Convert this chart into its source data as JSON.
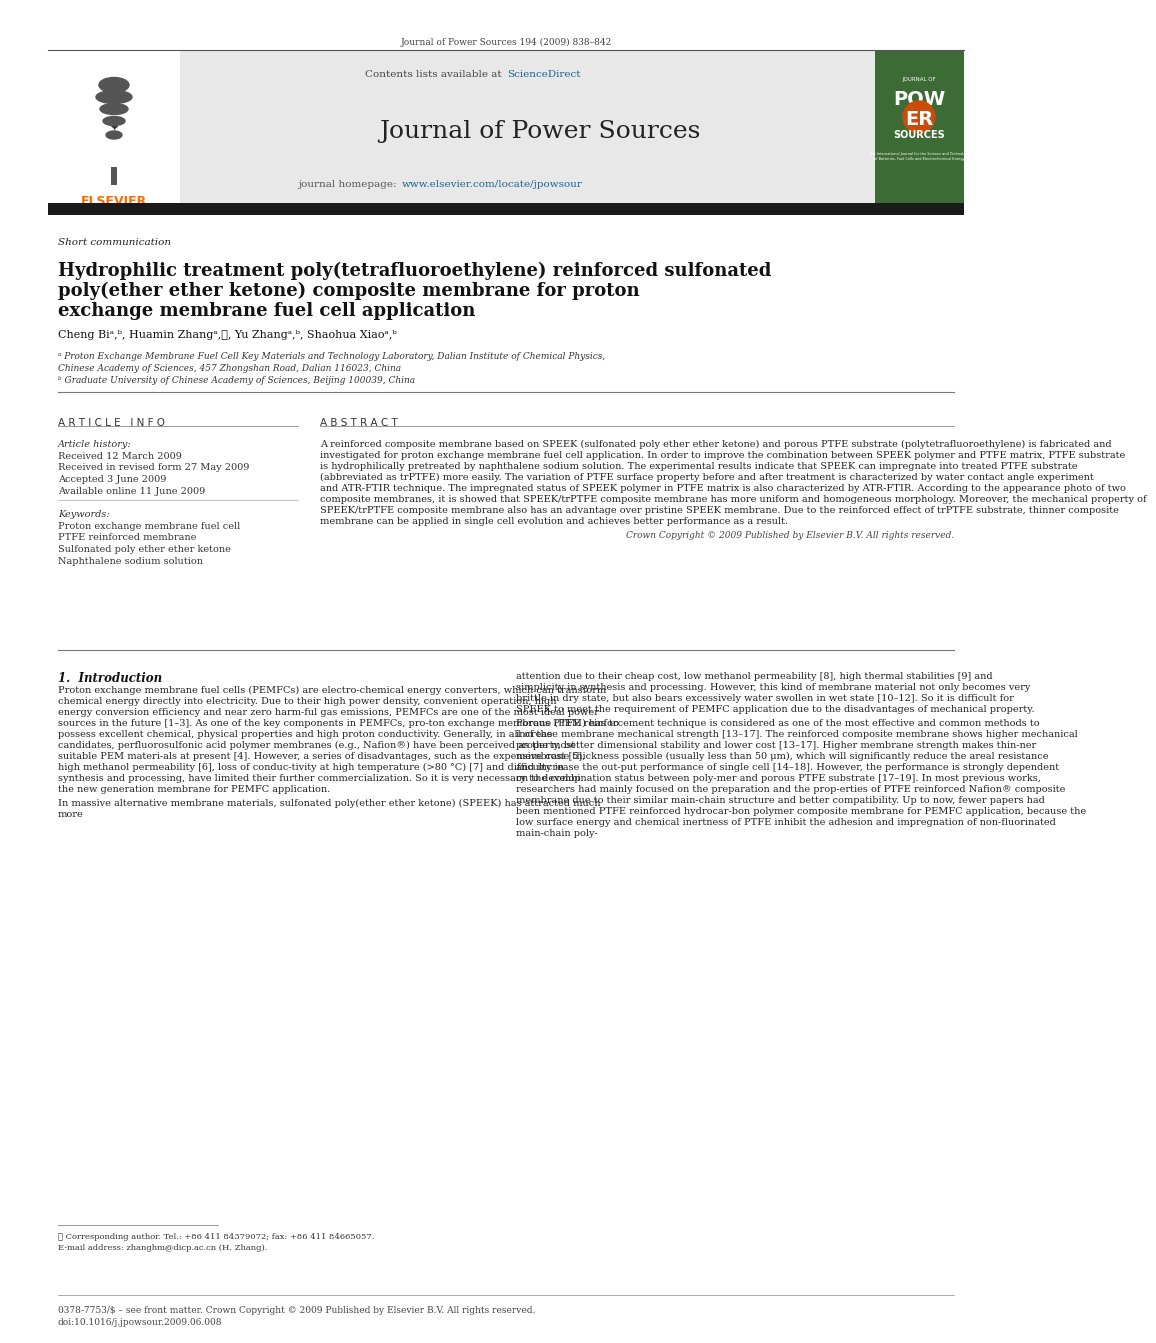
{
  "journal_ref": "Journal of Power Sources 194 (2009) 838–842",
  "contents_line1": "Contents lists available at ",
  "contents_scidir": "ScienceDirect",
  "journal_title": "Journal of Power Sources",
  "homepage_prefix": "journal homepage: ",
  "homepage_url": "www.elsevier.com/locate/jpowsour",
  "section_label": "Short communication",
  "paper_title_line1": "Hydrophilic treatment poly(tetrafluoroethylene) reinforced sulfonated",
  "paper_title_line2": "poly(ether ether ketone) composite membrane for proton",
  "paper_title_line3": "exchange membrane fuel cell application",
  "authors_full": "Cheng Biᵃ,ᵇ, Huamin Zhangᵃ,⋆, Yu Zhangᵃ,ᵇ, Shaohua Xiaoᵃ,ᵇ",
  "affil_a": "ᵃ Proton Exchange Membrane Fuel Cell Key Materials and Technology Laboratory, Dalian Institute of Chemical Physics,",
  "affil_a2": "Chinese Academy of Sciences, 457 Zhongshan Road, Dalian 116023, China",
  "affil_b": "ᵇ Graduate University of Chinese Academy of Sciences, Beijing 100039, China",
  "article_info_title": "A R T I C L E   I N F O",
  "abstract_title": "A B S T R A C T",
  "article_history_label": "Article history:",
  "received": "Received 12 March 2009",
  "received_revised": "Received in revised form 27 May 2009",
  "accepted": "Accepted 3 June 2009",
  "available": "Available online 11 June 2009",
  "keywords_label": "Keywords:",
  "kw1": "Proton exchange membrane fuel cell",
  "kw2": "PTFE reinforced membrane",
  "kw3": "Sulfonated poly ether ether ketone",
  "kw4": "Naphthalene sodium solution",
  "abstract_text": "A reinforced composite membrane based on SPEEK (sulfonated poly ether ether ketone) and porous PTFE substrate (polytetrafluoroethylene) is fabricated and investigated for proton exchange membrane fuel cell application. In order to improve the combination between SPEEK polymer and PTFE matrix, PTFE substrate is hydrophilically pretreated by naphthalene sodium solution. The experimental results indicate that SPEEK can impregnate into treated PTFE substrate (abbreviated as trPTFE) more easily. The variation of PTFE surface property before and after treatment is characterized by water contact angle experiment and ATR-FTIR technique. The impregnated status of SPEEK polymer in PTFE matrix is also characterized by ATR-FTIR. According to the appearance photo of two composite membranes, it is showed that SPEEK/trPTFE composite membrane has more uniform and homogeneous morphology. Moreover, the mechanical property of SPEEK/trPTFE composite membrane also has an advantage over pristine SPEEK membrane. Due to the reinforced effect of trPTFE substrate, thinner composite membrane can be applied in single cell evolution and achieves better performance as a result.",
  "copyright_line": "Crown Copyright © 2009 Published by Elsevier B.V. All rights reserved.",
  "intro_title": "1.  Introduction",
  "intro_indent": "    Proton exchange membrane fuel cells (PEMFCs) are electro-chemical energy converters, which can transform chemical energy directly into electricity. Due to their high power density, convenient operation, high energy conversion efficiency and near zero harm-ful gas emissions, PEMFCs are one of the most ideal power sources in the future [1–3]. As one of the key components in PEMFCs, pro-ton exchange membrane (PEM) has to possess excellent chemical, physical properties and high proton conductivity. Generally, in all of the candidates, perfluorosulfonic acid polymer membranes (e.g., Nafion®) have been perceived as the most suitable PEM materi-als at present [4]. However, a series of disadvantages, such as the expensive cost [5], high methanol permeability [6], loss of conduc-tivity at high temperature (>80 °C) [7] and difficulty in synthesis and processing, have limited their further commercialization. So it is very necessary to develop the new generation membrane for PEMFC application.",
  "intro_para2": "    In massive alternative membrane materials, sulfonated poly(ether ether ketone) (SPEEK) has attracted much more",
  "right_col_text1": "attention due to their cheap cost, low methanol permeability [8], high thermal stabilities [9] and simplicity in synthesis and processing. However, this kind of membrane material not only becomes very brittle in dry state, but also bears excessively water swollen in wet state [10–12]. So it is difficult for SPEEK to meet the requirement of PEMFC application due to the disadvantages of mechanical property.",
  "right_col_indent2": "    Porous PTFE reinforcement technique is considered as one of the most effective and common methods to increase membrane mechanical strength [13–17]. The reinforced composite membrane shows higher mechanical property, better dimensional stability and lower cost [13–17]. Higher membrane strength makes thin-ner membrane thickness possible (usually less than 50 μm), which will significantly reduce the areal resistance and increase the out-put performance of single cell [14–18]. However, the performance is strongly dependent on the combination status between poly-mer and porous PTFE substrate [17–19]. In most previous works, researchers had mainly focused on the preparation and the prop-erties of PTFE reinforced Nafion® composite membrane due to their similar main-chain structure and better compatibility. Up to now, fewer papers had been mentioned PTFE reinforced hydrocar-bon polymer composite membrane for PEMFC application, because the low surface energy and chemical inertness of PTFE inhibit the adhesion and impregnation of non-fluorinated main-chain poly-",
  "footnote_star": "⋆ Corresponding author. Tel.: +86 411 84379072; fax: +86 411 84665057.",
  "footnote_email": "E-mail address: zhanghm@dicp.ac.cn (H. Zhang).",
  "bottom_line1": "0378-7753/$ – see front matter. Crown Copyright © 2009 Published by Elsevier B.V. All rights reserved.",
  "bottom_line2": "doi:10.1016/j.jpowsour.2009.06.008",
  "color_elsevier_orange": "#FF6B00",
  "color_science_direct": "#1a6496",
  "color_homepage_blue": "#1a6496",
  "color_black_bar": "#1a1a1a",
  "header_bg": "#e8e8e8",
  "cover_green": "#3d6b35",
  "cover_orange": "#c94c0a"
}
